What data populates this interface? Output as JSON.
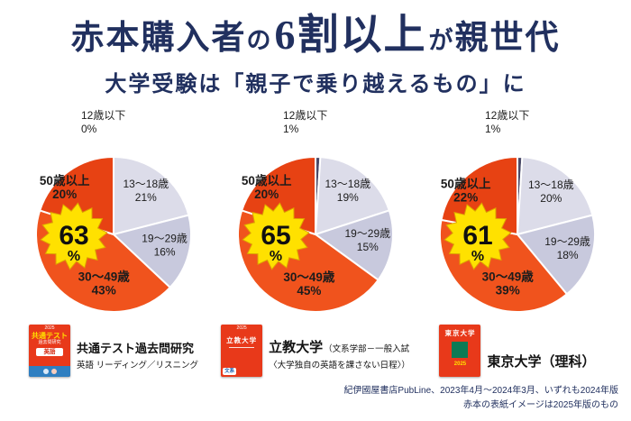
{
  "title": {
    "seg1": "赤本購入者",
    "seg2": "の",
    "seg3": "6割以上",
    "seg4": "が",
    "seg5": "親世代"
  },
  "subtitle": "大学受験は「親子で乗り越えるもの」に",
  "colors": {
    "navy": "#21305f",
    "burst_yellow": "#ffe100",
    "burst_outline": "#dda400",
    "book_red": "#e8391a",
    "slice_50plus": "#e74213",
    "slice_30_49": "#f0531d",
    "slice_19_29": "#c8c9dd",
    "slice_13_18": "#dcdce9",
    "slice_under12": "#4a4a68"
  },
  "chart_data": [
    {
      "type": "pie",
      "title": "共通テスト過去問研究",
      "subtitle1": "英語 リーディング／リスニング",
      "highlight_pct": 63,
      "legend_position": "inside",
      "segments": [
        {
          "label": "12歳以下",
          "value": 0,
          "color": "#4a4a68"
        },
        {
          "label": "13〜18歳",
          "value": 21,
          "color": "#dcdce9"
        },
        {
          "label": "19〜29歳",
          "value": 16,
          "color": "#c8c9dd"
        },
        {
          "label": "30〜49歳",
          "value": 43,
          "color": "#f0531d"
        },
        {
          "label": "50歳以上",
          "value": 20,
          "color": "#e74213"
        }
      ]
    },
    {
      "type": "pie",
      "title": "立教大学",
      "subtitle1": "（文系学部－一般入試",
      "subtitle2": "〈大学独自の英語を課さない日程〉）",
      "highlight_pct": 65,
      "legend_position": "inside",
      "segments": [
        {
          "label": "12歳以下",
          "value": 1,
          "color": "#4a4a68"
        },
        {
          "label": "13〜18歳",
          "value": 19,
          "color": "#dcdce9"
        },
        {
          "label": "19〜29歳",
          "value": 15,
          "color": "#c8c9dd"
        },
        {
          "label": "30〜49歳",
          "value": 45,
          "color": "#f0531d"
        },
        {
          "label": "50歳以上",
          "value": 20,
          "color": "#e74213"
        }
      ]
    },
    {
      "type": "pie",
      "title": "東京大学（理科）",
      "highlight_pct": 61,
      "legend_position": "inside",
      "segments": [
        {
          "label": "12歳以下",
          "value": 1,
          "color": "#4a4a68"
        },
        {
          "label": "13〜18歳",
          "value": 20,
          "color": "#dcdce9"
        },
        {
          "label": "19〜29歳",
          "value": 18,
          "color": "#c8c9dd"
        },
        {
          "label": "30〜49歳",
          "value": 39,
          "color": "#f0531d"
        },
        {
          "label": "50歳以上",
          "value": 22,
          "color": "#e74213"
        }
      ]
    }
  ],
  "books": [
    {
      "style": "kyotsu",
      "year": "2025",
      "line1": "共通テスト",
      "line2": "過去問研究",
      "badge": "英語"
    },
    {
      "style": "rikkyo",
      "year": "2025",
      "title": "立教大学",
      "badge": "文系"
    },
    {
      "style": "todai",
      "title": "東京大学",
      "year": "2025"
    }
  ],
  "footer": {
    "line1": "紀伊國屋書店PubLine、2023年4月〜2024年3月、いずれも2024年版",
    "line2": "赤本の表紙イメージは2025年版のもの"
  }
}
